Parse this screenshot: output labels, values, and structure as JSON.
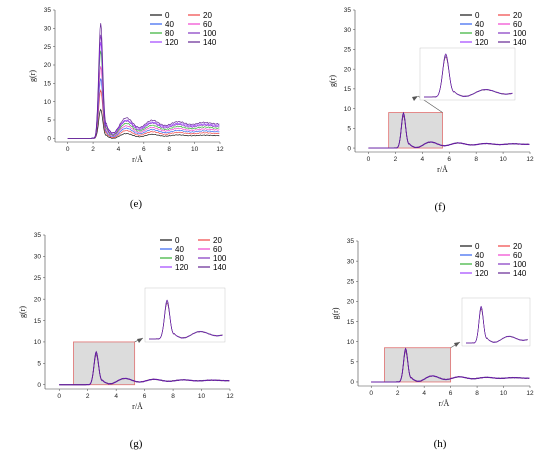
{
  "series_colors": [
    "#000000",
    "#ee3333",
    "#2255ee",
    "#ee33cc",
    "#22aa22",
    "#7722bb",
    "#9933ff",
    "#551188"
  ],
  "chart_data": [
    {
      "type": "line",
      "panel": "(e)",
      "xlabel": "r/Å",
      "ylabel": "g(r)",
      "xlim": [
        -1,
        12
      ],
      "ylim": [
        -1,
        35
      ],
      "xticks": [
        0,
        2,
        4,
        6,
        8,
        10,
        12
      ],
      "yticks": [
        0,
        5,
        10,
        15,
        20,
        25,
        30,
        35
      ],
      "legend": "top-right",
      "series": [
        {
          "name": "0",
          "peak": 7.5,
          "base": 0.8
        },
        {
          "name": "20",
          "peak": 12.5,
          "base": 1.4
        },
        {
          "name": "40",
          "peak": 15.5,
          "base": 1.9
        },
        {
          "name": "60",
          "peak": 18.5,
          "base": 2.4
        },
        {
          "name": "80",
          "peak": 22.5,
          "base": 2.9
        },
        {
          "name": "100",
          "peak": 26.5,
          "base": 3.4
        },
        {
          "name": "120",
          "peak": 24.5,
          "base": 3.7
        },
        {
          "name": "140",
          "peak": 29.5,
          "base": 4.1
        }
      ]
    },
    {
      "type": "line",
      "panel": "(f)",
      "xlabel": "r/Å",
      "ylabel": "g(r)",
      "xlim": [
        -1,
        12
      ],
      "ylim": [
        -1,
        35
      ],
      "xticks": [
        0,
        2,
        4,
        6,
        8,
        10,
        12
      ],
      "yticks": [
        0,
        5,
        10,
        15,
        20,
        25,
        30,
        35
      ],
      "legend": "top-right",
      "inset_box": {
        "x": [
          1.5,
          5.5
        ],
        "y": [
          0,
          9
        ]
      },
      "series": [
        {
          "name": "0",
          "peak": 7.8,
          "base": 1.0
        },
        {
          "name": "20",
          "peak": 7.9,
          "base": 1.0
        },
        {
          "name": "40",
          "peak": 8.0,
          "base": 1.0
        },
        {
          "name": "60",
          "peak": 8.1,
          "base": 1.0
        },
        {
          "name": "80",
          "peak": 8.2,
          "base": 1.0
        },
        {
          "name": "100",
          "peak": 8.3,
          "base": 1.0
        },
        {
          "name": "120",
          "peak": 8.4,
          "base": 1.0
        },
        {
          "name": "140",
          "peak": 8.5,
          "base": 1.0
        }
      ]
    },
    {
      "type": "line",
      "panel": "(g)",
      "xlabel": "r/Å",
      "ylabel": "g(r)",
      "xlim": [
        -1,
        12
      ],
      "ylim": [
        -1,
        35
      ],
      "xticks": [
        0,
        2,
        4,
        6,
        8,
        10,
        12
      ],
      "yticks": [
        0,
        5,
        10,
        15,
        20,
        25,
        30,
        35
      ],
      "legend": "top-right",
      "inset_box": {
        "x": [
          1,
          5.3
        ],
        "y": [
          0,
          10
        ]
      },
      "series": [
        {
          "name": "0",
          "peak": 6.6,
          "base": 1.0
        },
        {
          "name": "20",
          "peak": 6.7,
          "base": 1.0
        },
        {
          "name": "40",
          "peak": 6.8,
          "base": 1.0
        },
        {
          "name": "60",
          "peak": 6.9,
          "base": 1.0
        },
        {
          "name": "80",
          "peak": 7.0,
          "base": 1.0
        },
        {
          "name": "100",
          "peak": 7.1,
          "base": 1.0
        },
        {
          "name": "120",
          "peak": 7.2,
          "base": 1.0
        },
        {
          "name": "140",
          "peak": 7.3,
          "base": 1.0
        }
      ]
    },
    {
      "type": "line",
      "panel": "(h)",
      "xlabel": "r/Å",
      "ylabel": "g(r)",
      "xlim": [
        -1,
        12
      ],
      "ylim": [
        -1,
        35
      ],
      "xticks": [
        0,
        2,
        4,
        6,
        8,
        10,
        12
      ],
      "yticks": [
        0,
        5,
        10,
        15,
        20,
        25,
        30,
        35
      ],
      "legend": "top-right",
      "inset_box": {
        "x": [
          1,
          6
        ],
        "y": [
          0,
          8.5
        ]
      },
      "series": [
        {
          "name": "0",
          "peak": 7.2,
          "base": 1.0
        },
        {
          "name": "20",
          "peak": 7.3,
          "base": 1.0
        },
        {
          "name": "40",
          "peak": 7.4,
          "base": 1.0
        },
        {
          "name": "60",
          "peak": 7.5,
          "base": 1.0
        },
        {
          "name": "80",
          "peak": 7.6,
          "base": 1.0
        },
        {
          "name": "100",
          "peak": 7.7,
          "base": 1.0
        },
        {
          "name": "120",
          "peak": 7.8,
          "base": 1.0
        },
        {
          "name": "140",
          "peak": 7.9,
          "base": 1.0
        }
      ]
    }
  ]
}
